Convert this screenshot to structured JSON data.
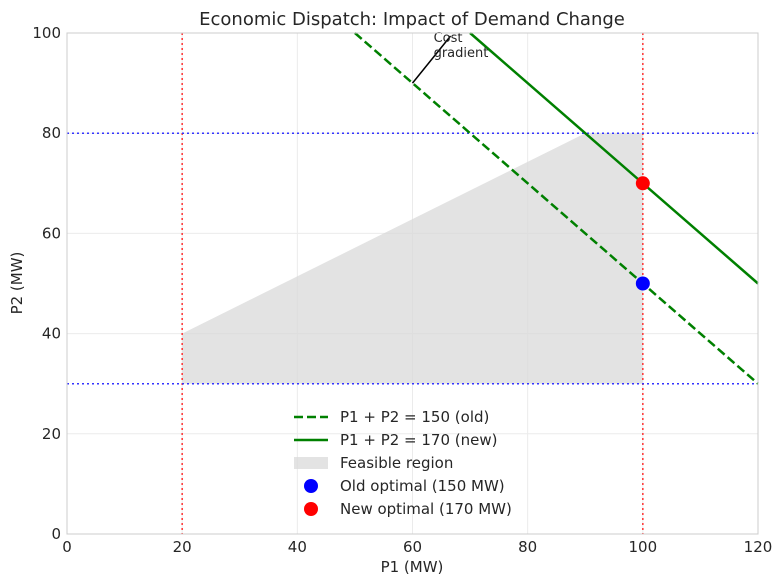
{
  "chart_data": {
    "type": "line",
    "title": "Economic Dispatch: Impact of Demand Change",
    "xlabel": "P1 (MW)",
    "ylabel": "P2 (MW)",
    "xlim": [
      0,
      120
    ],
    "ylim": [
      0,
      100
    ],
    "xticks": [
      0,
      20,
      40,
      60,
      80,
      100,
      120
    ],
    "yticks": [
      0,
      20,
      40,
      60,
      80,
      100
    ],
    "xtick_labels": [
      "0",
      "20",
      "40",
      "60",
      "80",
      "100",
      "120"
    ],
    "ytick_labels": [
      "0",
      "20",
      "40",
      "60",
      "80",
      "100"
    ],
    "grid": true,
    "legend_position": "bottom-center",
    "series": [
      {
        "name": "P1 + P2 = 150 (old)",
        "style": "dashed",
        "color": "#008000",
        "x": [
          50,
          120
        ],
        "y": [
          100,
          30
        ]
      },
      {
        "name": "P1 + P2 = 170 (new)",
        "style": "solid",
        "color": "#008000",
        "x": [
          70,
          120
        ],
        "y": [
          100,
          50
        ]
      }
    ],
    "feasible_region": {
      "name": "Feasible region",
      "color": "#d9d9d9",
      "x": [
        20,
        100,
        100,
        90,
        20
      ],
      "y": [
        30,
        30,
        80,
        80,
        40
      ]
    },
    "points": [
      {
        "name": "Old optimal (150 MW)",
        "color": "#0000ff",
        "x": 100,
        "y": 50
      },
      {
        "name": "New optimal (170 MW)",
        "color": "#ff0000",
        "x": 100,
        "y": 70
      }
    ],
    "reference_lines": [
      {
        "orientation": "vertical",
        "value": 20,
        "color": "#ff3333"
      },
      {
        "orientation": "vertical",
        "value": 100,
        "color": "#ff3333"
      },
      {
        "orientation": "horizontal",
        "value": 30,
        "color": "#3333ff"
      },
      {
        "orientation": "horizontal",
        "value": 80,
        "color": "#3333ff"
      }
    ],
    "annotations": [
      {
        "text_lines": [
          "Cost",
          "gradient"
        ],
        "arrow_from": [
          60,
          90
        ],
        "arrow_to": [
          68,
          100
        ]
      }
    ]
  }
}
